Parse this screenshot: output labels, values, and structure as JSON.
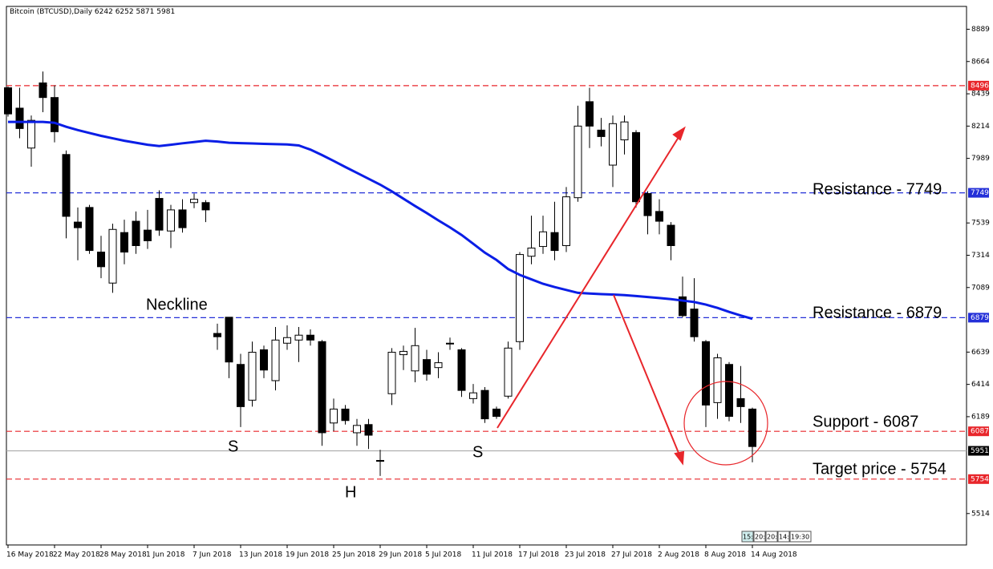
{
  "chart_data": {
    "type": "candlestick",
    "title": "Bitcoin (BTCUSD),Daily",
    "categories": [
      "16 May 2018",
      null,
      null,
      null,
      "22 May 2018",
      null,
      null,
      null,
      "28 May 2018",
      null,
      null,
      null,
      "1 Jun 2018",
      null,
      null,
      null,
      "7 Jun 2018",
      null,
      null,
      null,
      "13 Jun 2018",
      null,
      null,
      null,
      "19 Jun 2018",
      null,
      null,
      null,
      "25 Jun 2018",
      null,
      null,
      null,
      "29 Jun 2018",
      null,
      null,
      null,
      "5 Jul 2018",
      null,
      null,
      null,
      "11 Jul 2018",
      null,
      null,
      null,
      "17 Jul 2018",
      null,
      null,
      null,
      "23 Jul 2018",
      null,
      null,
      null,
      "27 Jul 2018",
      null,
      null,
      null,
      "2 Aug 2018",
      null,
      null,
      null,
      "8 Aug 2018",
      null,
      null,
      null,
      "14 Aug 2018"
    ],
    "open": [
      8481,
      8339,
      8061,
      8515,
      8413,
      8016,
      7545,
      7647,
      7336,
      7120,
      7472,
      7551,
      7489,
      7710,
      7483,
      7630,
      7681,
      7681,
      6769,
      6882,
      6553,
      6304,
      6655,
      6440,
      6701,
      6723,
      6757,
      6712,
      6145,
      6242,
      6077,
      6134,
      5884,
      6349,
      6621,
      6508,
      6587,
      6531,
      6701,
      6655,
      6315,
      6372,
      6242,
      6332,
      6712,
      7307,
      7375,
      7472,
      7381,
      7715,
      8384,
      8186,
      7942,
      8118,
      8169,
      7744,
      7619,
      7523,
      7024,
      6939,
      6712,
      6287,
      6553,
      6315,
      6242
    ],
    "high": [
      8490,
      8481,
      8288,
      8594,
      8498,
      8044,
      7647,
      7665,
      7449,
      7534,
      7562,
      7619,
      7630,
      7766,
      7665,
      7704,
      7744,
      7698,
      6837,
      6882,
      6627,
      6712,
      6684,
      6814,
      6825,
      6814,
      6797,
      6723,
      6315,
      6270,
      6173,
      6173,
      5958,
      6667,
      6684,
      6808,
      6655,
      6638,
      6740,
      6667,
      6417,
      6395,
      6259,
      6712,
      7336,
      7590,
      7590,
      7687,
      7789,
      8356,
      8481,
      8271,
      8288,
      8288,
      8186,
      7761,
      7704,
      7545,
      7165,
      7154,
      6723,
      6627,
      6570,
      6542,
      6252
    ],
    "low": [
      8280,
      8129,
      7931,
      8311,
      8101,
      7432,
      7279,
      7324,
      7154,
      7052,
      7251,
      7324,
      7358,
      7449,
      7364,
      7472,
      7642,
      7545,
      6655,
      6457,
      6117,
      6259,
      6457,
      6372,
      6655,
      6570,
      6684,
      5986,
      6088,
      6134,
      5986,
      5964,
      5776,
      6270,
      6514,
      6429,
      6440,
      6457,
      6655,
      6327,
      6281,
      6145,
      6174,
      6315,
      6655,
      7251,
      7324,
      7279,
      7336,
      7687,
      8061,
      8073,
      7789,
      8016,
      7647,
      7460,
      7460,
      7279,
      6882,
      6712,
      6117,
      6174,
      6157,
      6145,
      5871
    ],
    "close": [
      8299,
      8197,
      8254,
      8413,
      8175,
      7585,
      7506,
      7347,
      7234,
      7494,
      7336,
      7381,
      7415,
      7489,
      7630,
      7506,
      7704,
      7630,
      6746,
      6570,
      6259,
      6638,
      6514,
      6723,
      6740,
      6757,
      6723,
      6077,
      6242,
      6162,
      6128,
      6060,
      5878,
      6638,
      6644,
      6684,
      6485,
      6565,
      6700,
      6372,
      6355,
      6174,
      6191,
      6667,
      7319,
      7364,
      7477,
      7347,
      7721,
      8214,
      8214,
      8141,
      8231,
      8243,
      7687,
      7590,
      7551,
      7381,
      6893,
      6746,
      6270,
      6599,
      6191,
      6259,
      5981
    ],
    "up_color": "#ffffff",
    "down_color": "#000000",
    "moving_average": {
      "color": "#0a1ee6",
      "values": [
        8243,
        8243,
        8243,
        8243,
        8237,
        8209,
        8186,
        8166,
        8146,
        8129,
        8112,
        8098,
        8084,
        8075,
        8084,
        8094,
        8103,
        8112,
        8106,
        8098,
        8095,
        8093,
        8090,
        8088,
        8086,
        8079,
        8050,
        8012,
        7971,
        7929,
        7888,
        7847,
        7806,
        7759,
        7708,
        7657,
        7608,
        7557,
        7508,
        7455,
        7394,
        7332,
        7281,
        7218,
        7177,
        7146,
        7115,
        7092,
        7072,
        7052,
        7047,
        7043,
        7040,
        7036,
        7030,
        7023,
        7016,
        7008,
        6998,
        6988,
        6970,
        6947,
        6919,
        6894,
        6871
      ]
    },
    "ylim": [
      5295,
      9048
    ],
    "yticks": [
      8889,
      8664,
      8439,
      8214,
      7989,
      7539,
      7314,
      7089,
      6639,
      6414,
      6189,
      5514
    ],
    "levels": [
      {
        "value": 8496,
        "color": "#e8262b",
        "style": "dashed"
      },
      {
        "value": 7749,
        "color": "#2430d8",
        "style": "dashed"
      },
      {
        "value": 6879,
        "color": "#2430d8",
        "style": "dashed"
      },
      {
        "value": 6087,
        "color": "#e8262b",
        "style": "dashed"
      },
      {
        "value": 5951,
        "color": "#000000",
        "style": "solid"
      },
      {
        "value": 5754,
        "color": "#e8262b",
        "style": "dashed"
      }
    ],
    "annotations": [
      "Neckline",
      "S",
      "H",
      "S",
      "Resistance - 7749",
      "Resistance - 6879",
      "Support - 6087",
      "Target price - 5754"
    ],
    "time_tabs": [
      "15:",
      "20:3(",
      "20:",
      "14:",
      "19:30"
    ]
  }
}
